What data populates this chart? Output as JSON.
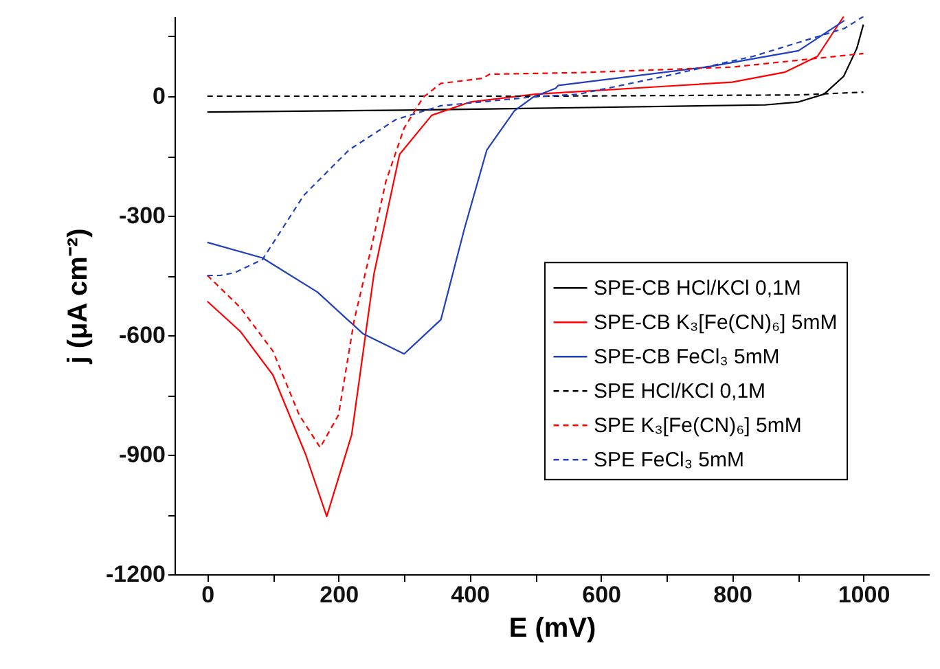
{
  "chart_data": {
    "type": "line",
    "xlabel": "E (mV)",
    "ylabel": "j (μA cm⁻²)",
    "xlim": [
      -50,
      1100
    ],
    "ylim": [
      -1200,
      200
    ],
    "xticks": [
      0,
      {
        "value": 100,
        "label": null
      },
      200,
      {
        "value": 300,
        "label": null
      },
      400,
      {
        "value": 500,
        "label": null
      },
      600,
      {
        "value": 700,
        "label": null
      },
      800,
      {
        "value": 900,
        "label": null
      },
      1000
    ],
    "yticks": [
      {
        "value": 150,
        "label": null
      },
      0,
      {
        "value": -150,
        "label": null
      },
      -300,
      {
        "value": -450,
        "label": null
      },
      -600,
      {
        "value": -750,
        "label": null
      },
      -900,
      {
        "value": -1050,
        "label": null
      },
      -1200
    ],
    "grid": false,
    "legend": "right",
    "marker": "none",
    "series": [
      {
        "name": "SPE-CB HCl/KCl 0,1M",
        "color": "#000000",
        "line_style": "solid",
        "x": [
          0,
          300,
          600,
          850,
          900,
          940,
          970,
          990,
          1000
        ],
        "values": [
          -40,
          -35,
          -28,
          -22,
          -15,
          5,
          50,
          120,
          180
        ]
      },
      {
        "name": "SPE-CB K₃[Fe(CN)₆] 5mM",
        "color": "#ff0000",
        "line_style": "solid",
        "x": [
          0,
          50,
          100,
          150,
          182,
          220,
          254,
          293,
          342,
          400,
          500,
          600,
          700,
          800,
          880,
          930,
          970
        ],
        "values": [
          -515,
          -590,
          -700,
          -900,
          -1055,
          -850,
          -446,
          -146,
          -48,
          -15,
          5,
          15,
          25,
          35,
          60,
          100,
          200
        ]
      },
      {
        "name": "SPE-CB FeCl₃ 5mM",
        "color": "#1f3fbf",
        "line_style": "solid",
        "x": [
          0,
          84,
          168,
          237,
          300,
          356,
          392,
          426,
          468,
          497,
          531,
          535,
          761,
          901,
          971
        ],
        "values": [
          -367,
          -406,
          -492,
          -596,
          -647,
          -561,
          -332,
          -135,
          -37,
          -2,
          20,
          27,
          73,
          114,
          190
        ]
      },
      {
        "name": "SPE HCl/KCl 0,1M",
        "color": "#000000",
        "line_style": "dashed",
        "x": [
          0,
          500,
          900,
          1000
        ],
        "values": [
          0,
          0,
          3,
          10
        ]
      },
      {
        "name": "SPE K₃[Fe(CN)₆] 5mM",
        "color": "#ff0000",
        "line_style": "dashed",
        "x": [
          0,
          50,
          100,
          140,
          172,
          200,
          224,
          250,
          272,
          300,
          329,
          356,
          420,
          430,
          566,
          800,
          1000
        ],
        "values": [
          -450,
          -530,
          -640,
          -800,
          -882,
          -800,
          -561,
          -380,
          -215,
          -80,
          -3,
          32,
          45,
          55,
          59,
          73,
          107
        ]
      },
      {
        "name": "SPE FeCl₃ 5mM",
        "color": "#1f3fbf",
        "line_style": "dashed",
        "x": [
          0,
          20,
          42,
          84,
          147,
          216,
          287,
          356,
          497,
          566,
          692,
          832,
          971,
          1000
        ],
        "values": [
          -450,
          -450,
          -443,
          -410,
          -249,
          -135,
          -59,
          -24,
          -2,
          5,
          48,
          100,
          170,
          200
        ]
      }
    ]
  }
}
